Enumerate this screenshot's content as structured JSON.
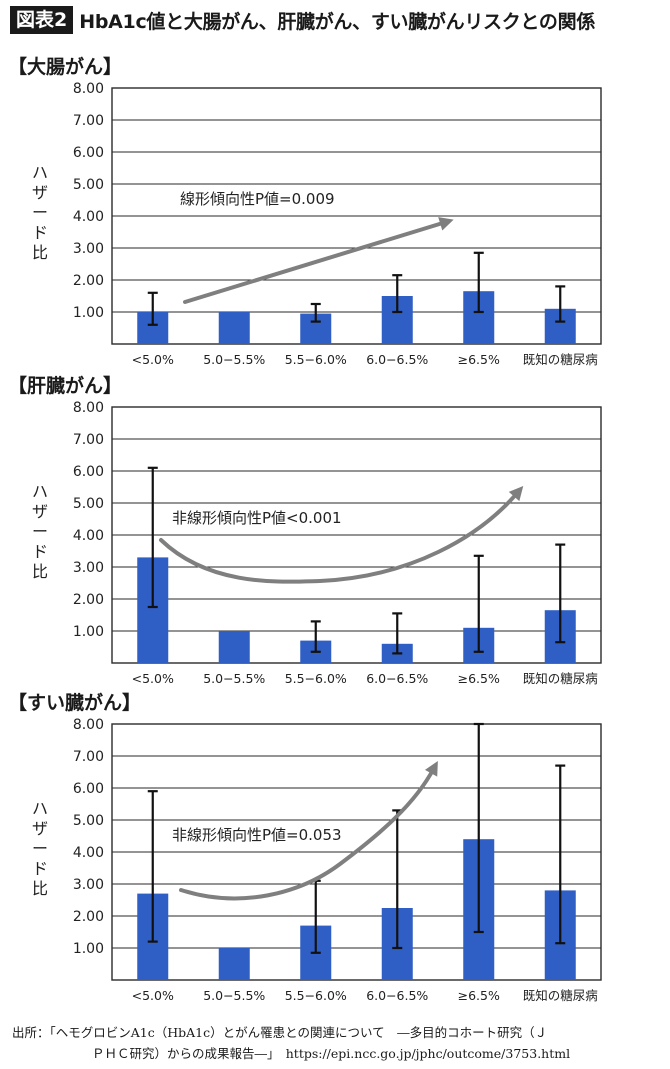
{
  "header": {
    "figure_label": "図表2",
    "title": "HbA1c値と大腸がん、肝臓がん、すい臓がんリスクとの関係"
  },
  "colors": {
    "bar": "#2f5ec4",
    "arrow": "#7f7f7f",
    "grid": "#2a2a2a",
    "errorbar": "#111111"
  },
  "chart_data": [
    {
      "type": "bar",
      "title": "【大腸がん】",
      "ylabel": "ハザード比",
      "ylim": [
        0,
        8
      ],
      "yticks": [
        "8.00",
        "7.00",
        "6.00",
        "5.00",
        "4.00",
        "3.00",
        "2.00",
        "1.00"
      ],
      "categories": [
        "<5.0%",
        "5.0−5.5%",
        "5.5−6.0%",
        "6.0−6.5%",
        "≥6.5%",
        "既知の糖尿病"
      ],
      "values": [
        1.0,
        1.0,
        0.95,
        1.5,
        1.65,
        1.1
      ],
      "ci_lower": [
        0.6,
        null,
        0.7,
        1.0,
        1.0,
        0.7
      ],
      "ci_upper": [
        1.6,
        null,
        1.25,
        2.15,
        2.85,
        1.8
      ],
      "annotation": "線形傾向性P値=0.009",
      "trend": "linear"
    },
    {
      "type": "bar",
      "title": "【肝臓がん】",
      "ylabel": "ハザード比",
      "ylim": [
        0,
        8
      ],
      "yticks": [
        "8.00",
        "7.00",
        "6.00",
        "5.00",
        "4.00",
        "3.00",
        "2.00",
        "1.00"
      ],
      "categories": [
        "<5.0%",
        "5.0−5.5%",
        "5.5−6.0%",
        "6.0−6.5%",
        "≥6.5%",
        "既知の糖尿病"
      ],
      "values": [
        3.3,
        1.0,
        0.7,
        0.6,
        1.1,
        1.65
      ],
      "ci_lower": [
        1.75,
        null,
        0.35,
        0.3,
        0.35,
        0.65
      ],
      "ci_upper": [
        6.1,
        null,
        1.3,
        1.55,
        3.35,
        3.7
      ],
      "annotation": "非線形傾向性P値<0.001",
      "trend": "nonlinear"
    },
    {
      "type": "bar",
      "title": "【すい臓がん】",
      "ylabel": "ハザード比",
      "ylim": [
        0,
        8
      ],
      "yticks": [
        "8.00",
        "7.00",
        "6.00",
        "5.00",
        "4.00",
        "3.00",
        "2.00",
        "1.00"
      ],
      "categories": [
        "<5.0%",
        "5.0−5.5%",
        "5.5−6.0%",
        "6.0−6.5%",
        "≥6.5%",
        "既知の糖尿病"
      ],
      "values": [
        2.7,
        1.0,
        1.7,
        2.25,
        4.4,
        2.8
      ],
      "ci_lower": [
        1.2,
        null,
        0.85,
        1.0,
        1.5,
        1.15
      ],
      "ci_upper": [
        5.9,
        null,
        3.1,
        5.3,
        8.0,
        6.7
      ],
      "annotation": "非線形傾向性P値=0.053",
      "trend": "nonlinear"
    }
  ],
  "source": {
    "line1": "出所：「ヘモグロビンA1c（HbA1c）とがん罹患との関連について　―多目的コホート研究（Ｊ",
    "line2": "ＰＨＣ研究）からの成果報告―」　https://epi.ncc.go.jp/jphc/outcome/3753.html"
  }
}
